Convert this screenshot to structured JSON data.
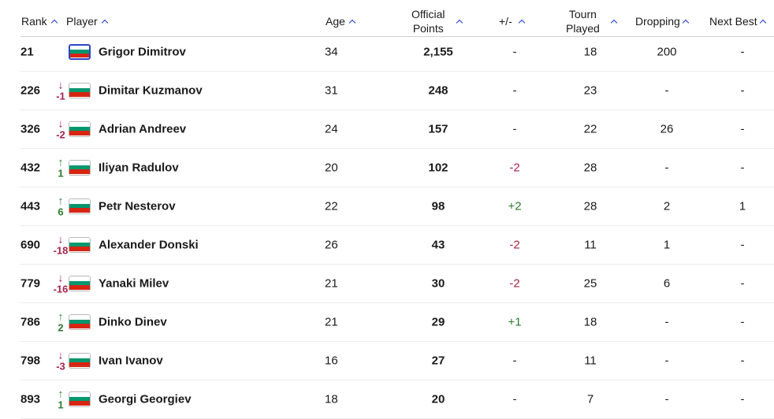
{
  "headers": {
    "rank": "Rank",
    "player": "Player",
    "age": "Age",
    "points_line1": "Official",
    "points_line2": "Points",
    "delta": "+/-",
    "played_line1": "Tourn",
    "played_line2": "Played",
    "dropping": "Dropping",
    "next_best": "Next Best"
  },
  "colors": {
    "sort_arrow": "#1b3bd6",
    "move_down": "#a3234a",
    "move_up": "#2d7a2d"
  },
  "flag_icon": "bulgaria-flag-icon",
  "rows": [
    {
      "rank": "21",
      "move_dir": "",
      "move_arrow": "",
      "move": "",
      "player": "Grigor Dimitrov",
      "age": "34",
      "points": "2,155",
      "delta": "-",
      "delta_type": "none",
      "played": "18",
      "dropping": "200",
      "next_best": "-"
    },
    {
      "rank": "226",
      "move_dir": "down",
      "move_arrow": "↓",
      "move": "-1",
      "player": "Dimitar Kuzmanov",
      "age": "31",
      "points": "248",
      "delta": "-",
      "delta_type": "none",
      "played": "23",
      "dropping": "-",
      "next_best": "-"
    },
    {
      "rank": "326",
      "move_dir": "down",
      "move_arrow": "↓",
      "move": "-2",
      "player": "Adrian Andreev",
      "age": "24",
      "points": "157",
      "delta": "-",
      "delta_type": "none",
      "played": "22",
      "dropping": "26",
      "next_best": "-"
    },
    {
      "rank": "432",
      "move_dir": "up",
      "move_arrow": "↑",
      "move": "1",
      "player": "Iliyan Radulov",
      "age": "20",
      "points": "102",
      "delta": "-2",
      "delta_type": "neg",
      "played": "28",
      "dropping": "-",
      "next_best": "-"
    },
    {
      "rank": "443",
      "move_dir": "up",
      "move_arrow": "↑",
      "move": "6",
      "player": "Petr Nesterov",
      "age": "22",
      "points": "98",
      "delta": "+2",
      "delta_type": "pos",
      "played": "28",
      "dropping": "2",
      "next_best": "1"
    },
    {
      "rank": "690",
      "move_dir": "down",
      "move_arrow": "↓",
      "move": "-18",
      "player": "Alexander Donski",
      "age": "26",
      "points": "43",
      "delta": "-2",
      "delta_type": "neg",
      "played": "11",
      "dropping": "1",
      "next_best": "-"
    },
    {
      "rank": "779",
      "move_dir": "down",
      "move_arrow": "↓",
      "move": "-16",
      "player": "Yanaki Milev",
      "age": "21",
      "points": "30",
      "delta": "-2",
      "delta_type": "neg",
      "played": "25",
      "dropping": "6",
      "next_best": "-"
    },
    {
      "rank": "786",
      "move_dir": "up",
      "move_arrow": "↑",
      "move": "2",
      "player": "Dinko Dinev",
      "age": "21",
      "points": "29",
      "delta": "+1",
      "delta_type": "pos",
      "played": "18",
      "dropping": "-",
      "next_best": "-"
    },
    {
      "rank": "798",
      "move_dir": "down",
      "move_arrow": "↓",
      "move": "-3",
      "player": "Ivan Ivanov",
      "age": "16",
      "points": "27",
      "delta": "-",
      "delta_type": "none",
      "played": "11",
      "dropping": "-",
      "next_best": "-"
    },
    {
      "rank": "893",
      "move_dir": "up",
      "move_arrow": "↑",
      "move": "1",
      "player": "Georgi Georgiev",
      "age": "18",
      "points": "20",
      "delta": "-",
      "delta_type": "none",
      "played": "7",
      "dropping": "-",
      "next_best": "-"
    }
  ]
}
